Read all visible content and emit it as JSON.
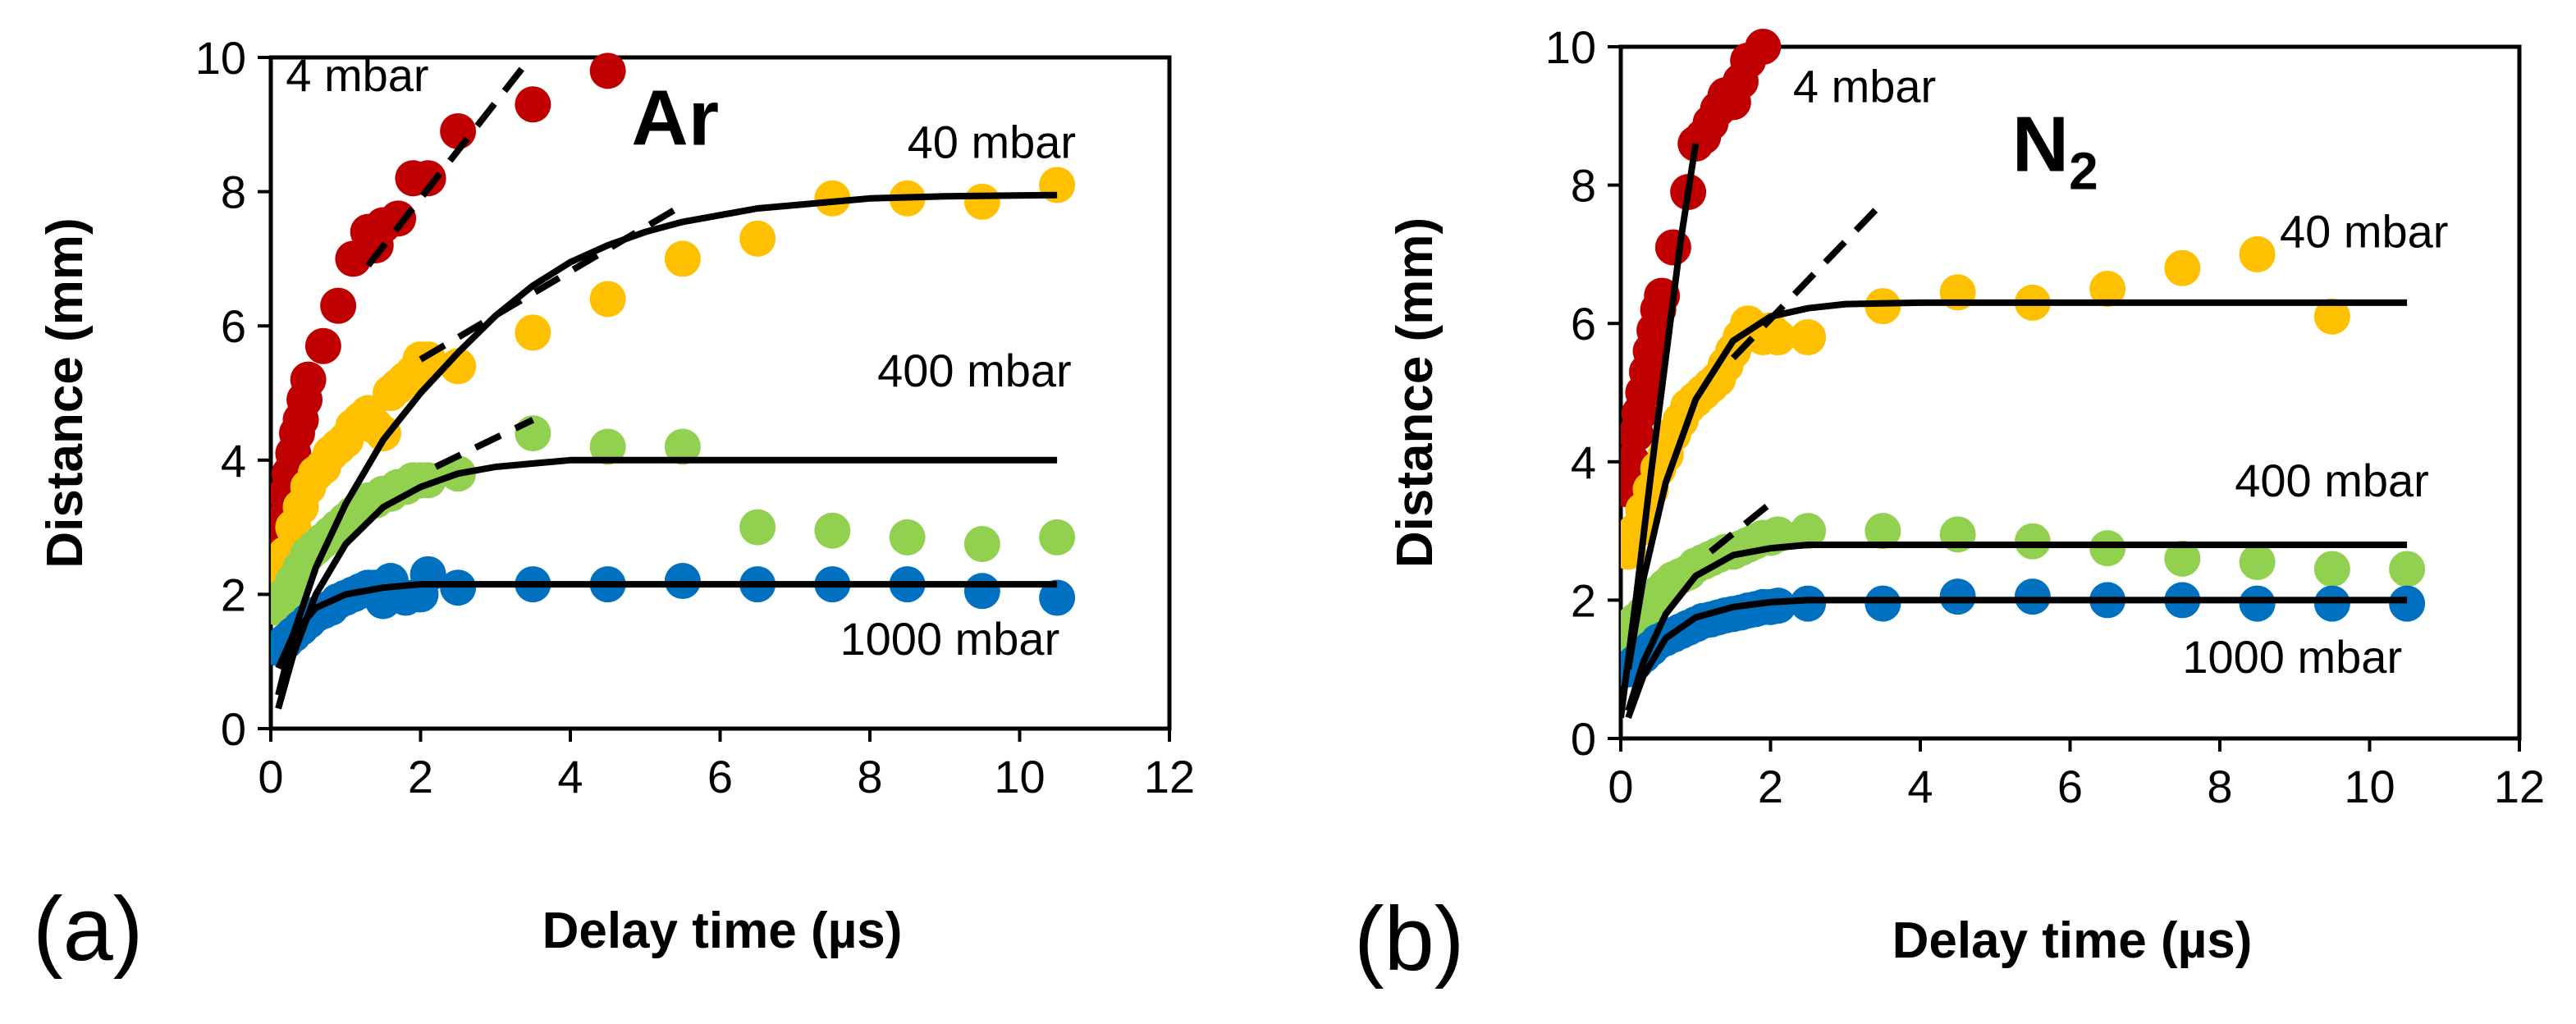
{
  "chart_data": [
    {
      "type": "scatter",
      "panel_label": "(a)",
      "gas_label": "Ar",
      "xlabel": "Delay time (µs)",
      "ylabel": "Distance (mm)",
      "xlim": [
        0,
        12
      ],
      "ylim": [
        0,
        10
      ],
      "xticks": [
        "0",
        "2",
        "4",
        "6",
        "8",
        "10",
        "12"
      ],
      "yticks": [
        "0",
        "2",
        "4",
        "6",
        "8",
        "10"
      ],
      "grid": false,
      "series": [
        {
          "name": "4 mbar",
          "color": "#c00000",
          "x": [
            0.1,
            0.15,
            0.2,
            0.25,
            0.3,
            0.35,
            0.4,
            0.45,
            0.5,
            0.7,
            0.9,
            1.1,
            1.3,
            1.4,
            1.5,
            1.7,
            1.9,
            2.1,
            2.5,
            3.5,
            4.5
          ],
          "y": [
            2.8,
            3.1,
            3.5,
            3.8,
            4.1,
            4.4,
            4.6,
            4.9,
            5.2,
            5.7,
            6.3,
            7.0,
            7.4,
            7.2,
            7.5,
            7.6,
            8.2,
            8.2,
            8.9,
            9.3,
            9.8
          ]
        },
        {
          "name": "40 mbar",
          "color": "#ffc000",
          "x": [
            0.1,
            0.2,
            0.3,
            0.4,
            0.5,
            0.6,
            0.7,
            0.8,
            0.9,
            1.0,
            1.1,
            1.2,
            1.3,
            1.4,
            1.5,
            1.6,
            1.7,
            1.8,
            1.9,
            2.0,
            2.1,
            2.5,
            3.5,
            4.5,
            5.5,
            6.5,
            7.5,
            8.5,
            9.5,
            10.5
          ],
          "y": [
            2.2,
            2.6,
            3.0,
            3.3,
            3.6,
            3.8,
            3.9,
            4.1,
            4.2,
            4.3,
            4.5,
            4.6,
            4.7,
            4.5,
            4.4,
            5.0,
            5.1,
            5.2,
            5.3,
            5.5,
            5.5,
            5.4,
            5.9,
            6.4,
            7.0,
            7.3,
            7.9,
            7.9,
            7.85,
            8.1
          ]
        },
        {
          "name": "400 mbar",
          "color": "#92d050",
          "x": [
            0.1,
            0.2,
            0.3,
            0.4,
            0.5,
            0.6,
            0.7,
            0.8,
            0.9,
            1.0,
            1.1,
            1.2,
            1.3,
            1.4,
            1.5,
            1.6,
            1.7,
            1.8,
            1.9,
            2.0,
            2.1,
            2.5,
            3.5,
            4.5,
            5.5,
            6.5,
            7.5,
            8.5,
            9.5,
            10.5
          ],
          "y": [
            1.8,
            2.0,
            2.2,
            2.4,
            2.6,
            2.7,
            2.8,
            2.9,
            3.0,
            3.1,
            3.2,
            3.3,
            3.4,
            3.4,
            3.5,
            3.5,
            3.6,
            3.6,
            3.7,
            3.7,
            3.7,
            3.8,
            4.4,
            4.2,
            4.2,
            3.0,
            2.95,
            2.85,
            2.75,
            2.85
          ]
        },
        {
          "name": "1000 mbar",
          "color": "#0070c0",
          "x": [
            0.1,
            0.2,
            0.3,
            0.4,
            0.5,
            0.6,
            0.7,
            0.8,
            0.9,
            1.0,
            1.1,
            1.2,
            1.3,
            1.4,
            1.5,
            1.6,
            1.8,
            2.0,
            2.1,
            2.5,
            3.5,
            4.5,
            5.5,
            6.5,
            7.5,
            8.5,
            9.5,
            10.5
          ],
          "y": [
            1.2,
            1.3,
            1.4,
            1.5,
            1.6,
            1.7,
            1.75,
            1.8,
            1.9,
            1.95,
            2.0,
            2.05,
            2.1,
            2.1,
            1.9,
            2.2,
            1.95,
            2.0,
            2.3,
            2.1,
            2.15,
            2.15,
            2.2,
            2.15,
            2.15,
            2.15,
            2.05,
            1.95
          ]
        }
      ],
      "fit_lines": [
        {
          "name": "40 mbar fit",
          "style": "solid",
          "x": [
            0.1,
            0.3,
            0.6,
            1.0,
            1.5,
            2.0,
            2.5,
            3.0,
            3.5,
            4.0,
            4.5,
            5.0,
            5.5,
            6.0,
            6.5,
            7.0,
            7.5,
            8.0,
            9.0,
            10.5
          ],
          "y": [
            0.5,
            1.4,
            2.4,
            3.35,
            4.3,
            5.0,
            5.6,
            6.15,
            6.6,
            6.95,
            7.2,
            7.4,
            7.55,
            7.65,
            7.75,
            7.8,
            7.85,
            7.9,
            7.93,
            7.95
          ]
        },
        {
          "name": "400 mbar fit",
          "style": "solid",
          "x": [
            0.1,
            0.3,
            0.6,
            1.0,
            1.5,
            2.0,
            2.5,
            3.0,
            3.5,
            4.0,
            5.0,
            6.0,
            8.0,
            10.5
          ],
          "y": [
            0.3,
            1.1,
            2.0,
            2.75,
            3.3,
            3.6,
            3.8,
            3.9,
            3.95,
            4.0,
            4.0,
            4.0,
            4.0,
            4.0
          ]
        },
        {
          "name": "1000 mbar fit",
          "style": "solid",
          "x": [
            0.1,
            0.3,
            0.6,
            1.0,
            1.5,
            2.0,
            2.5,
            3.0,
            4.0,
            6.0,
            10.5
          ],
          "y": [
            0.9,
            1.4,
            1.8,
            2.0,
            2.1,
            2.15,
            2.15,
            2.15,
            2.15,
            2.15,
            2.15
          ]
        },
        {
          "name": "4 mbar linear",
          "style": "dashed",
          "x": [
            1.3,
            3.4
          ],
          "y": [
            6.9,
            9.9
          ]
        },
        {
          "name": "40 mbar linear",
          "style": "dashed",
          "x": [
            2.0,
            5.5
          ],
          "y": [
            5.5,
            7.8
          ]
        },
        {
          "name": "400 mbar linear",
          "style": "dashed",
          "x": [
            2.2,
            3.5
          ],
          "y": [
            3.9,
            4.6
          ]
        }
      ],
      "annotations": [
        {
          "text": "4 mbar",
          "x": 0.2,
          "y": 9.5
        },
        {
          "text": "40 mbar",
          "x": 8.5,
          "y": 8.5
        },
        {
          "text": "400 mbar",
          "x": 8.1,
          "y": 5.1
        },
        {
          "text": "1000 mbar",
          "x": 7.6,
          "y": 1.1
        }
      ],
      "gas_position": {
        "x": 5.4,
        "y": 8.7
      }
    },
    {
      "type": "scatter",
      "panel_label": "(b)",
      "gas_label": "N",
      "gas_subscript": "2",
      "xlabel": "Delay time (µs)",
      "ylabel": "Distance (mm)",
      "xlim": [
        0,
        12
      ],
      "ylim": [
        0,
        10
      ],
      "xticks": [
        "0",
        "2",
        "4",
        "6",
        "8",
        "10",
        "12"
      ],
      "yticks": [
        "0",
        "2",
        "4",
        "6",
        "8",
        "10"
      ],
      "grid": false,
      "series": [
        {
          "name": "4 mbar",
          "color": "#c00000",
          "x": [
            0.1,
            0.15,
            0.2,
            0.25,
            0.3,
            0.35,
            0.4,
            0.45,
            0.5,
            0.55,
            0.7,
            0.9,
            1.0,
            1.1,
            1.2,
            1.3,
            1.4,
            1.5,
            1.6,
            1.7,
            1.9
          ],
          "y": [
            3.6,
            4.0,
            4.4,
            4.7,
            5.0,
            5.3,
            5.6,
            5.9,
            6.2,
            6.4,
            7.1,
            7.9,
            8.6,
            8.7,
            8.9,
            9.1,
            9.3,
            9.2,
            9.5,
            9.8,
            10.0
          ]
        },
        {
          "name": "40 mbar",
          "color": "#ffc000",
          "x": [
            0.1,
            0.2,
            0.3,
            0.4,
            0.5,
            0.6,
            0.7,
            0.8,
            0.9,
            1.0,
            1.1,
            1.2,
            1.3,
            1.4,
            1.5,
            1.6,
            1.7,
            1.8,
            1.9,
            2.0,
            2.1,
            2.5,
            3.5,
            4.5,
            5.5,
            6.5,
            7.5,
            8.5,
            9.5
          ],
          "y": [
            2.7,
            3.0,
            3.3,
            3.6,
            3.9,
            4.1,
            4.4,
            4.6,
            4.8,
            4.9,
            5.0,
            5.1,
            5.2,
            5.4,
            5.6,
            5.8,
            6.0,
            5.9,
            5.8,
            5.9,
            5.8,
            5.8,
            6.25,
            6.45,
            6.3,
            6.5,
            6.8,
            7.0,
            6.1
          ]
        },
        {
          "name": "400 mbar",
          "color": "#92d050",
          "x": [
            0.1,
            0.2,
            0.3,
            0.4,
            0.5,
            0.6,
            0.7,
            0.8,
            0.9,
            1.0,
            1.1,
            1.2,
            1.3,
            1.4,
            1.5,
            1.6,
            1.7,
            1.8,
            1.9,
            2.0,
            2.1,
            2.5,
            3.5,
            4.5,
            5.5,
            6.5,
            7.5,
            8.5,
            9.5,
            10.5
          ],
          "y": [
            1.5,
            1.7,
            1.8,
            2.0,
            2.1,
            2.2,
            2.3,
            2.35,
            2.4,
            2.5,
            2.55,
            2.6,
            2.65,
            2.7,
            2.7,
            2.75,
            2.8,
            2.85,
            2.9,
            2.9,
            2.95,
            3.0,
            3.0,
            2.95,
            2.85,
            2.75,
            2.6,
            2.55,
            2.45,
            2.45
          ]
        },
        {
          "name": "1000 mbar",
          "color": "#0070c0",
          "x": [
            0.1,
            0.2,
            0.3,
            0.4,
            0.5,
            0.6,
            0.7,
            0.8,
            0.9,
            1.0,
            1.1,
            1.2,
            1.3,
            1.4,
            1.5,
            1.6,
            1.7,
            1.8,
            1.9,
            2.0,
            2.1,
            2.5,
            3.5,
            4.5,
            5.5,
            6.5,
            7.5,
            8.5,
            9.5,
            10.5
          ],
          "y": [
            1.0,
            1.1,
            1.2,
            1.3,
            1.4,
            1.45,
            1.5,
            1.55,
            1.6,
            1.65,
            1.7,
            1.72,
            1.75,
            1.78,
            1.8,
            1.82,
            1.85,
            1.87,
            1.9,
            1.9,
            1.92,
            1.95,
            1.95,
            2.05,
            2.05,
            2.0,
            2.0,
            1.95,
            1.95,
            1.95
          ]
        }
      ],
      "fit_lines": [
        {
          "name": "40 mbar fit",
          "style": "solid",
          "x": [
            0.1,
            0.3,
            0.6,
            1.0,
            1.5,
            2.0,
            2.5,
            3.0,
            4.0,
            6.0,
            10.5
          ],
          "y": [
            1.0,
            2.3,
            3.7,
            4.9,
            5.75,
            6.1,
            6.22,
            6.28,
            6.3,
            6.3,
            6.3
          ]
        },
        {
          "name": "400 mbar fit",
          "style": "solid",
          "x": [
            0.1,
            0.3,
            0.6,
            1.0,
            1.5,
            2.0,
            2.5,
            3.0,
            4.0,
            10.5
          ],
          "y": [
            0.4,
            1.1,
            1.8,
            2.35,
            2.65,
            2.75,
            2.8,
            2.8,
            2.8,
            2.8
          ]
        },
        {
          "name": "1000 mbar fit",
          "style": "solid",
          "x": [
            0.1,
            0.3,
            0.6,
            1.0,
            1.5,
            2.0,
            2.5,
            3.0,
            4.0,
            10.5
          ],
          "y": [
            0.3,
            0.9,
            1.45,
            1.75,
            1.9,
            1.97,
            2.0,
            2.0,
            2.0,
            2.0
          ]
        },
        {
          "name": "4 mbar fit",
          "style": "solid",
          "x": [
            0.0,
            0.2,
            0.4,
            0.6,
            0.8,
            1.0
          ],
          "y": [
            0.3,
            2.0,
            3.8,
            5.5,
            7.2,
            8.6
          ]
        },
        {
          "name": "40 mbar linear",
          "style": "dashed",
          "x": [
            1.5,
            3.5
          ],
          "y": [
            5.5,
            7.75
          ]
        },
        {
          "name": "400 mbar linear",
          "style": "dashed",
          "x": [
            1.2,
            2.0
          ],
          "y": [
            2.7,
            3.4
          ]
        }
      ],
      "annotations": [
        {
          "text": "4 mbar",
          "x": 2.3,
          "y": 9.2
        },
        {
          "text": "40 mbar",
          "x": 8.8,
          "y": 7.1
        },
        {
          "text": "400 mbar",
          "x": 8.2,
          "y": 3.5
        },
        {
          "text": "1000 mbar",
          "x": 7.5,
          "y": 0.95
        }
      ],
      "gas_position": {
        "x": 5.8,
        "y": 8.2
      }
    }
  ]
}
